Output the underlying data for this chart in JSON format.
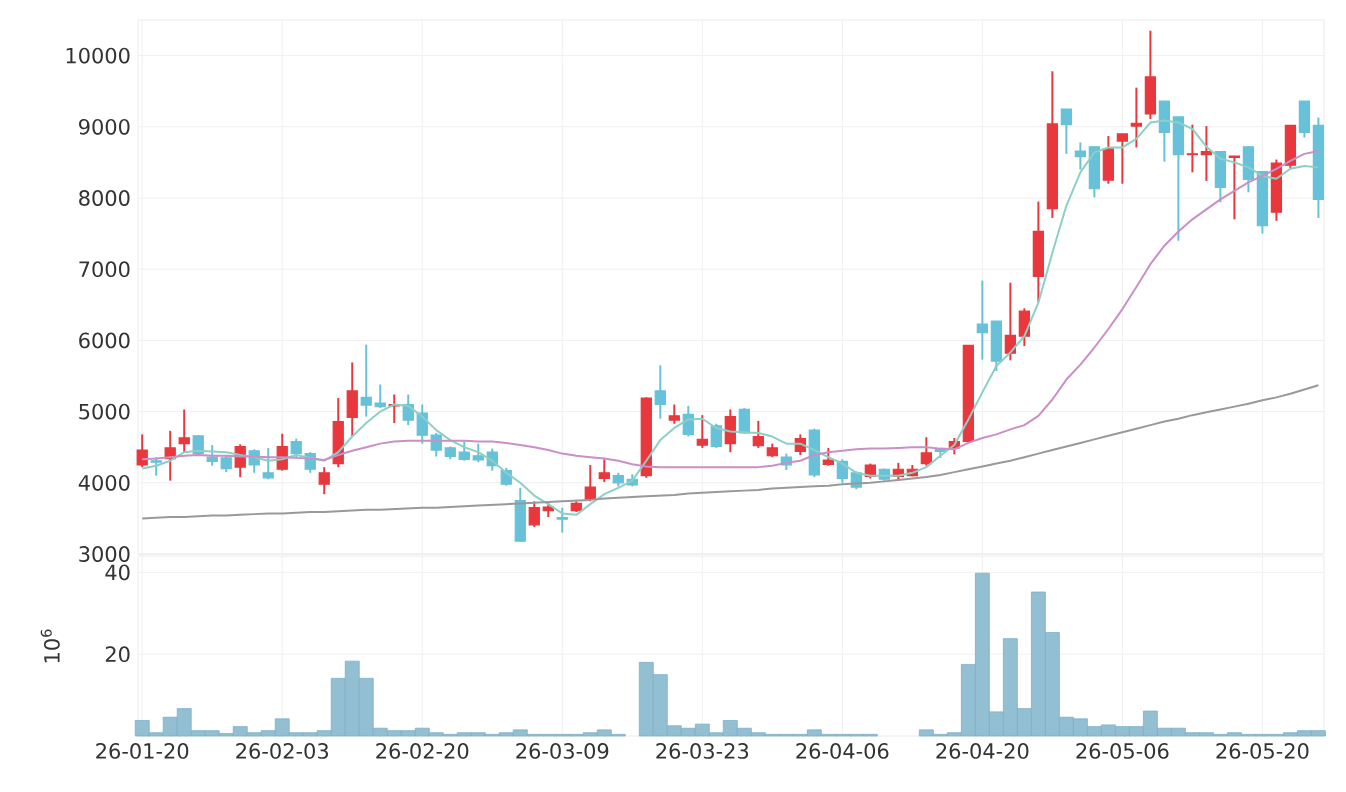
{
  "chart_data": [
    {
      "type": "candlestick",
      "tick_labels": "y",
      "grid": true,
      "categories": [
        null,
        null,
        null,
        null,
        null,
        null,
        null,
        null,
        null,
        null,
        null,
        null,
        null,
        null,
        null,
        null,
        null,
        null,
        null,
        null,
        null,
        null,
        null,
        null,
        null,
        null,
        null,
        null,
        null,
        null,
        null,
        null,
        null,
        null,
        null,
        null,
        null,
        null,
        null,
        null,
        null,
        null,
        null,
        null,
        null,
        null,
        null,
        null,
        null,
        null,
        null,
        null,
        null,
        null,
        null,
        null,
        null,
        null,
        null,
        null,
        null,
        null,
        null,
        null,
        null,
        null,
        null,
        null,
        null,
        null,
        null,
        null,
        null,
        null,
        null,
        null,
        null,
        null,
        null,
        null,
        null,
        null,
        null,
        null,
        null
      ],
      "ylim": [
        3000,
        10500
      ],
      "yticks": [
        3000,
        4000,
        5000,
        6000,
        7000,
        8000,
        9000,
        10000
      ],
      "ohlc": [
        [
          4250,
          4680,
          4220,
          4460
        ],
        [
          4310,
          4360,
          4100,
          4290
        ],
        [
          4340,
          4730,
          4030,
          4490
        ],
        [
          4550,
          5030,
          4430,
          4630
        ],
        [
          4660,
          4670,
          4390,
          4410
        ],
        [
          4360,
          4530,
          4240,
          4300
        ],
        [
          4350,
          4390,
          4150,
          4200
        ],
        [
          4220,
          4540,
          4080,
          4510
        ],
        [
          4450,
          4470,
          4140,
          4250
        ],
        [
          4140,
          4490,
          4050,
          4070
        ],
        [
          4190,
          4690,
          4170,
          4510
        ],
        [
          4580,
          4620,
          4350,
          4410
        ],
        [
          4410,
          4430,
          4140,
          4190
        ],
        [
          3980,
          4220,
          3840,
          4140
        ],
        [
          4270,
          5190,
          4220,
          4860
        ],
        [
          4920,
          5690,
          4650,
          5290
        ],
        [
          5200,
          5940,
          4930,
          5090
        ],
        [
          5120,
          5380,
          5050,
          5070
        ],
        [
          5080,
          5240,
          4840,
          5100
        ],
        [
          5100,
          5240,
          4810,
          4880
        ],
        [
          4980,
          5100,
          4550,
          4670
        ],
        [
          4670,
          4700,
          4370,
          4460
        ],
        [
          4490,
          4510,
          4330,
          4370
        ],
        [
          4430,
          4580,
          4310,
          4330
        ],
        [
          4380,
          4550,
          4290,
          4320
        ],
        [
          4430,
          4480,
          4170,
          4240
        ],
        [
          4170,
          4210,
          3960,
          3980
        ],
        [
          3750,
          3930,
          3180,
          3180
        ],
        [
          3410,
          3740,
          3380,
          3650
        ],
        [
          3610,
          3740,
          3520,
          3660
        ],
        [
          3510,
          3650,
          3300,
          3490
        ],
        [
          3610,
          3740,
          3590,
          3710
        ],
        [
          3770,
          4250,
          3740,
          3940
        ],
        [
          4060,
          4330,
          4010,
          4140
        ],
        [
          4100,
          4140,
          3950,
          4000
        ],
        [
          4050,
          4120,
          3950,
          3970
        ],
        [
          4100,
          5200,
          4070,
          5190
        ],
        [
          5290,
          5650,
          4900,
          5100
        ],
        [
          4880,
          5100,
          4830,
          4940
        ],
        [
          4960,
          5080,
          4650,
          4680
        ],
        [
          4530,
          4950,
          4490,
          4610
        ],
        [
          4800,
          4830,
          4490,
          4510
        ],
        [
          4550,
          5030,
          4430,
          4930
        ],
        [
          5030,
          5050,
          4690,
          4700
        ],
        [
          4520,
          4870,
          4490,
          4650
        ],
        [
          4380,
          4550,
          4360,
          4490
        ],
        [
          4360,
          4410,
          4180,
          4250
        ],
        [
          4440,
          4680,
          4390,
          4620
        ],
        [
          4740,
          4760,
          4080,
          4110
        ],
        [
          4260,
          4490,
          4240,
          4320
        ],
        [
          4300,
          4330,
          4000,
          4060
        ],
        [
          4140,
          4160,
          3910,
          3940
        ],
        [
          4090,
          4270,
          4060,
          4250
        ],
        [
          4190,
          4200,
          4030,
          4050
        ],
        [
          4090,
          4280,
          4050,
          4190
        ],
        [
          4100,
          4250,
          4090,
          4190
        ],
        [
          4270,
          4640,
          4240,
          4420
        ],
        [
          4480,
          4480,
          4350,
          4440
        ],
        [
          4490,
          4630,
          4400,
          4580
        ],
        [
          4580,
          5930,
          4560,
          5930
        ],
        [
          6230,
          6840,
          5730,
          6110
        ],
        [
          6270,
          6270,
          5570,
          5710
        ],
        [
          5820,
          6810,
          5720,
          6070
        ],
        [
          6060,
          6450,
          5920,
          6410
        ],
        [
          6900,
          7950,
          6540,
          7530
        ],
        [
          7850,
          9780,
          7720,
          9040
        ],
        [
          9250,
          9250,
          8620,
          9030
        ],
        [
          8660,
          8780,
          8400,
          8580
        ],
        [
          8720,
          8720,
          8010,
          8130
        ],
        [
          8250,
          8870,
          8200,
          8690
        ],
        [
          8800,
          8900,
          8200,
          8900
        ],
        [
          9010,
          9550,
          8710,
          9050
        ],
        [
          9180,
          10350,
          9110,
          9700
        ],
        [
          9360,
          9360,
          8510,
          8920
        ],
        [
          9140,
          9140,
          7400,
          8610
        ],
        [
          8610,
          9030,
          8360,
          8620
        ],
        [
          8610,
          9010,
          8240,
          8650
        ],
        [
          8650,
          8650,
          7940,
          8150
        ],
        [
          8570,
          8590,
          7700,
          8590
        ],
        [
          8720,
          8720,
          8080,
          8260
        ],
        [
          8370,
          8370,
          7500,
          7610
        ],
        [
          7800,
          8540,
          7680,
          8490
        ],
        [
          8460,
          9020,
          8410,
          9020
        ],
        [
          9360,
          9360,
          8850,
          8920
        ],
        [
          9020,
          9130,
          7720,
          7980
        ]
      ],
      "series": [
        {
          "type": "line",
          "color": "#8ccfc4",
          "values": [
            4200,
            4240,
            4310,
            4430,
            4450,
            4440,
            4430,
            4390,
            4360,
            4310,
            4330,
            4390,
            4350,
            4310,
            4430,
            4650,
            4840,
            5000,
            5100,
            5080,
            4930,
            4740,
            4600,
            4500,
            4430,
            4310,
            4140,
            4000,
            3820,
            3700,
            3570,
            3550,
            3700,
            3840,
            3930,
            4030,
            4310,
            4600,
            4770,
            4890,
            4900,
            4770,
            4720,
            4710,
            4700,
            4650,
            4550,
            4550,
            4460,
            4360,
            4270,
            4140,
            4100,
            4100,
            4100,
            4140,
            4220,
            4380,
            4530,
            4890,
            5270,
            5640,
            5830,
            6060,
            6530,
            7230,
            7890,
            8360,
            8640,
            8710,
            8710,
            8830,
            9060,
            9090,
            9060,
            8970,
            8720,
            8550,
            8500,
            8430,
            8310,
            8270,
            8410,
            8450,
            8430
          ]
        },
        {
          "type": "line",
          "color": "#c98fc7",
          "values": [
            4330,
            4340,
            4360,
            4380,
            4390,
            4380,
            4380,
            4370,
            4370,
            4360,
            4360,
            4350,
            4340,
            4320,
            4390,
            4450,
            4500,
            4550,
            4580,
            4590,
            4590,
            4590,
            4590,
            4590,
            4580,
            4580,
            4560,
            4530,
            4500,
            4460,
            4410,
            4380,
            4360,
            4340,
            4310,
            4260,
            4230,
            4220,
            4220,
            4220,
            4220,
            4220,
            4220,
            4220,
            4220,
            4240,
            4280,
            4310,
            4390,
            4430,
            4450,
            4470,
            4480,
            4480,
            4490,
            4500,
            4500,
            4480,
            4470,
            4560,
            4630,
            4680,
            4750,
            4810,
            4940,
            5170,
            5450,
            5660,
            5900,
            6160,
            6440,
            6750,
            7070,
            7330,
            7530,
            7700,
            7840,
            7980,
            8100,
            8220,
            8310,
            8410,
            8520,
            8620,
            8660
          ]
        },
        {
          "type": "line",
          "color": "#999999",
          "values": [
            3500,
            3510,
            3520,
            3520,
            3530,
            3540,
            3540,
            3550,
            3560,
            3570,
            3570,
            3580,
            3590,
            3590,
            3600,
            3610,
            3620,
            3620,
            3630,
            3640,
            3650,
            3650,
            3660,
            3670,
            3680,
            3690,
            3700,
            3710,
            3720,
            3730,
            3740,
            3750,
            3760,
            3780,
            3790,
            3800,
            3810,
            3820,
            3830,
            3850,
            3860,
            3870,
            3880,
            3890,
            3900,
            3920,
            3930,
            3940,
            3950,
            3960,
            3980,
            3990,
            4000,
            4020,
            4040,
            4060,
            4080,
            4110,
            4150,
            4190,
            4230,
            4270,
            4310,
            4360,
            4410,
            4460,
            4510,
            4560,
            4610,
            4660,
            4710,
            4760,
            4810,
            4860,
            4900,
            4950,
            4990,
            5030,
            5070,
            5110,
            5160,
            5200,
            5250,
            5310,
            5370
          ]
        }
      ]
    },
    {
      "type": "bar",
      "grid": true,
      "ylabel": "10$^{6}$",
      "color": "#93bfd3",
      "categories": [
        "26-01-20",
        null,
        null,
        null,
        null,
        null,
        null,
        null,
        null,
        null,
        "26-02-03",
        null,
        null,
        null,
        null,
        null,
        null,
        null,
        null,
        null,
        "26-02-20",
        null,
        null,
        null,
        null,
        null,
        null,
        null,
        null,
        null,
        "26-03-09",
        null,
        null,
        null,
        null,
        null,
        null,
        null,
        null,
        null,
        "26-03-23",
        null,
        null,
        null,
        null,
        null,
        null,
        null,
        null,
        null,
        "26-04-06",
        null,
        null,
        null,
        null,
        null,
        null,
        null,
        null,
        null,
        "26-04-20",
        null,
        null,
        null,
        null,
        null,
        null,
        null,
        null,
        null,
        "26-05-06",
        null,
        null,
        null,
        null,
        null,
        null,
        null,
        null,
        null,
        "26-05-20",
        null,
        null,
        null,
        null
      ],
      "ylim": [
        0,
        44
      ],
      "yticks": [
        20,
        40
      ],
      "values": [
        3.8,
        0.8,
        4.6,
        6.7,
        1.3,
        1.3,
        0.6,
        2.3,
        0.8,
        1.3,
        4.2,
        0.8,
        0.8,
        1.3,
        14.1,
        18.3,
        14.1,
        1.9,
        1.3,
        1.3,
        1.9,
        0.8,
        0.4,
        0.8,
        0.8,
        0.4,
        0.8,
        1.5,
        0.4,
        0.4,
        0.4,
        0.4,
        0.8,
        1.5,
        0.4,
        null,
        18,
        15,
        2.5,
        1.9,
        2.9,
        0.8,
        3.8,
        1.9,
        0.8,
        0.4,
        0.4,
        0.4,
        1.5,
        0.4,
        0.4,
        0.4,
        0.4,
        null,
        null,
        null,
        1.5,
        0.4,
        0.8,
        17.5,
        39.8,
        5.9,
        23.8,
        6.7,
        35.2,
        25.3,
        4.6,
        4.2,
        2.3,
        2.7,
        2.3,
        2.3,
        6.1,
        1.9,
        1.9,
        0.8,
        0.8,
        0.4,
        0.8,
        0.4,
        0.4,
        0.4,
        0.8,
        1.3,
        1.3
      ]
    }
  ]
}
